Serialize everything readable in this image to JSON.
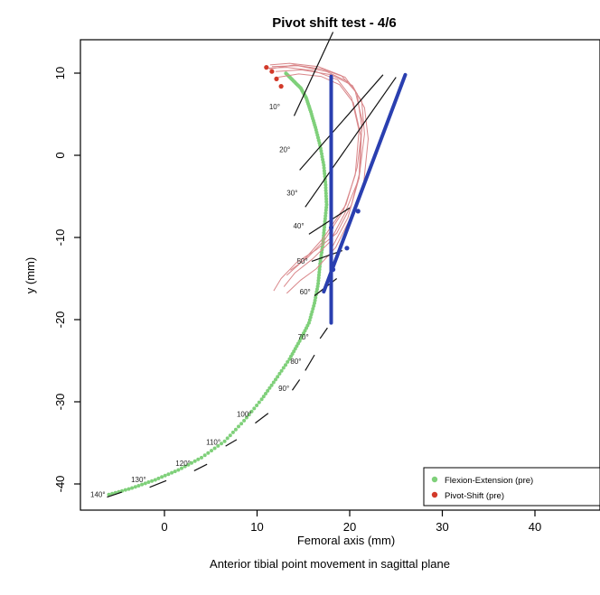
{
  "chart_data": {
    "type": "scatter",
    "title": "Pivot shift test - 4/6",
    "xlabel": "Femoral axis (mm)",
    "ylabel": "y (mm)",
    "caption": "Anterior tibial point movement in sagittal plane",
    "xlim": [
      -9,
      47
    ],
    "ylim": [
      -44,
      14
    ],
    "x_ticks": [
      0,
      10,
      20,
      30,
      40
    ],
    "y_ticks": [
      -40,
      -30,
      -20,
      -10,
      0,
      10
    ],
    "grid": false,
    "legend_position": "bottom-right",
    "colors": {
      "flexion": "#7fd07a",
      "pivot": "#d23a2a",
      "pivot_trace": "#d9878a",
      "angle_lines": "#111111",
      "reference_lines": "#2a3fb0"
    },
    "series": [
      {
        "name": "Flexion-Extension (pre)",
        "marker": "point",
        "x": [
          -6,
          -3.5,
          -1,
          1.5,
          4,
          6.5,
          8.6,
          10.5,
          12,
          13.5,
          14.6,
          15.6,
          16.2,
          16.6,
          16.8,
          17.1,
          17.3,
          17.5,
          17.4,
          17.2,
          16.8,
          16.3,
          15.8,
          15.3,
          14.7,
          13.8,
          13
        ],
        "y": [
          -41.3,
          -40.5,
          -39.5,
          -38.3,
          -36.8,
          -34.8,
          -32.3,
          -29.7,
          -27.3,
          -24.8,
          -22.6,
          -20.4,
          -18,
          -15.6,
          -13.2,
          -10.8,
          -8.4,
          -6,
          -3.6,
          -1.2,
          1.2,
          3.4,
          5.3,
          7,
          8.2,
          9.2,
          10.1
        ]
      },
      {
        "name": "Pivot-Shift (pre)",
        "marker": "point",
        "x": [
          11,
          11.6,
          12.1,
          12.6
        ],
        "y": [
          10.7,
          10.2,
          9.3,
          8.4
        ]
      }
    ],
    "pivot_traces": [
      {
        "x": [
          11.3,
          14,
          17,
          19.5,
          20.8,
          21.3,
          21.1,
          20.2,
          18.6,
          16.4,
          14.3,
          12.6,
          11.8
        ],
        "y": [
          10.5,
          11,
          10.5,
          9.5,
          7.5,
          3.5,
          -2,
          -6,
          -9.5,
          -11.5,
          -13,
          -15,
          -16.5
        ]
      },
      {
        "x": [
          11.6,
          14.4,
          17.5,
          19.9,
          21.3,
          21.6,
          21,
          19.5,
          17.8,
          16,
          14.1,
          12.9
        ],
        "y": [
          10.8,
          10.9,
          10.2,
          8.9,
          6.6,
          2.6,
          -2.8,
          -7,
          -10.6,
          -12.6,
          -14.3,
          -16
        ]
      },
      {
        "x": [
          12,
          14.8,
          18,
          20.3,
          21.6,
          22,
          21.5,
          20,
          18.5,
          16.4,
          14.7,
          13.2
        ],
        "y": [
          10.2,
          10.4,
          9.8,
          8.5,
          5.8,
          2,
          -3.5,
          -7.8,
          -11.2,
          -13.8,
          -15.2,
          -16.8
        ]
      },
      {
        "x": [
          11,
          13.2,
          16.1,
          18.7,
          20.2,
          21,
          20.6,
          19.3,
          17.3,
          15.5,
          13.6
        ],
        "y": [
          10.6,
          10.7,
          10.3,
          9.2,
          7,
          3,
          -2.4,
          -6.8,
          -10.3,
          -12.4,
          -14
        ]
      },
      {
        "x": [
          11.4,
          13.5,
          16.6,
          19.1,
          20.6,
          21.4,
          20.8,
          19.6,
          17.2,
          15,
          13.2
        ],
        "y": [
          11,
          11.2,
          10.8,
          9.7,
          7.8,
          4,
          -1.5,
          -6,
          -10,
          -12.8,
          -14.6
        ]
      },
      {
        "x": [
          12.3,
          14.5,
          16.9,
          18.9,
          20.4,
          21.2,
          21,
          19.8,
          18
        ],
        "y": [
          9.5,
          9.9,
          9.6,
          8.6,
          6.4,
          2.4,
          -2.8,
          -7.6,
          -11.4
        ]
      }
    ],
    "angle_markers": [
      {
        "label": "10°",
        "text_x": 11.3,
        "text_y": 5.6,
        "x": [
          14,
          18.2
        ],
        "y": [
          4.8,
          15
        ]
      },
      {
        "label": "20°",
        "text_x": 12.4,
        "text_y": 0.4,
        "x": [
          14.6,
          23.6
        ],
        "y": [
          -1.8,
          9.8
        ]
      },
      {
        "label": "30°",
        "text_x": 13.2,
        "text_y": -4.9,
        "x": [
          15.2,
          25
        ],
        "y": [
          -6.3,
          9.5
        ]
      },
      {
        "label": "40°",
        "text_x": 13.9,
        "text_y": -8.9,
        "x": [
          15.6,
          20
        ],
        "y": [
          -9.6,
          -6.4
        ]
      },
      {
        "label": "50°",
        "text_x": 14.3,
        "text_y": -13.2,
        "x": [
          15.9,
          19.2
        ],
        "y": [
          -12.9,
          -11.6
        ]
      },
      {
        "label": "60°",
        "text_x": 14.6,
        "text_y": -16.9,
        "x": [
          16.2,
          18.6
        ],
        "y": [
          -17.1,
          -15
        ]
      },
      {
        "label": "70°",
        "text_x": 14.4,
        "text_y": -22.4,
        "x": [
          16.8,
          17.6
        ],
        "y": [
          -22.3,
          -21
        ]
      },
      {
        "label": "80°",
        "text_x": 13.6,
        "text_y": -25.4,
        "x": [
          15.2,
          16.2
        ],
        "y": [
          -26.2,
          -24.3
        ]
      },
      {
        "label": "90°",
        "text_x": 12.3,
        "text_y": -28.7,
        "x": [
          13.8,
          14.6
        ],
        "y": [
          -28.6,
          -27.3
        ]
      },
      {
        "label": "100°",
        "text_x": 7.8,
        "text_y": -31.8,
        "x": [
          9.8,
          11.2
        ],
        "y": [
          -32.6,
          -31.4
        ]
      },
      {
        "label": "110°",
        "text_x": 4.5,
        "text_y": -35.2,
        "x": [
          6.6,
          7.8
        ],
        "y": [
          -35.4,
          -34.6
        ]
      },
      {
        "label": "120°",
        "text_x": 1.2,
        "text_y": -37.8,
        "x": [
          3.2,
          4.6
        ],
        "y": [
          -38.4,
          -37.6
        ]
      },
      {
        "label": "130°",
        "text_x": -3.6,
        "text_y": -39.8,
        "x": [
          -1.6,
          0.2
        ],
        "y": [
          -40.4,
          -39.6
        ]
      },
      {
        "label": "140°",
        "text_x": -8,
        "text_y": -41.6,
        "x": [
          -6.2,
          -4.6
        ],
        "y": [
          -41.6,
          -41
        ]
      }
    ],
    "reference_lines": [
      {
        "x": [
          18,
          18
        ],
        "y": [
          9.6,
          -20.4
        ]
      },
      {
        "x": [
          17.2,
          26
        ],
        "y": [
          -16.6,
          9.8
        ]
      }
    ]
  }
}
